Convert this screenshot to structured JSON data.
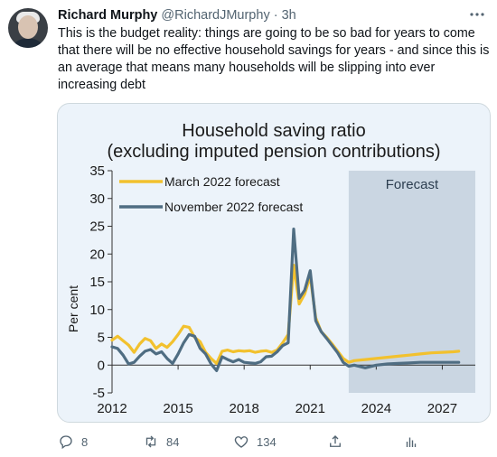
{
  "tweet": {
    "author_name": "Richard Murphy",
    "author_handle": "@RichardJMurphy",
    "separator": "·",
    "time": "3h",
    "text": "This is the budget reality: things are going to be so bad for years to come that there will be no effective household savings for years - and since this is an average that means many households will be slipping into ever increasing debt",
    "more_icon": "more-horizontal-icon"
  },
  "actions": {
    "reply_count": "8",
    "retweet_count": "84",
    "like_count": "134",
    "icons": [
      "reply-icon",
      "retweet-icon",
      "like-icon",
      "share-icon",
      "analytics-icon"
    ]
  },
  "chart_data": {
    "type": "line",
    "title_line1": "Household saving ratio",
    "title_line2": "(excluding imputed pension contributions)",
    "ylabel": "Per cent",
    "ylim": [
      -5,
      35
    ],
    "yticks": [
      "35",
      "30",
      "25",
      "20",
      "15",
      "10",
      "5",
      "0",
      "-5"
    ],
    "xlim": [
      2012,
      2028.5
    ],
    "xticks": [
      "2012",
      "2015",
      "2018",
      "2021",
      "2024",
      "2027"
    ],
    "forecast_label": "Forecast",
    "forecast_start": 2022.75,
    "series": [
      {
        "name": "March 2022 forecast",
        "color": "#f2c12e",
        "x": [
          2012,
          2012.25,
          2012.5,
          2012.75,
          2013,
          2013.25,
          2013.5,
          2013.75,
          2014,
          2014.25,
          2014.5,
          2014.75,
          2015,
          2015.25,
          2015.5,
          2015.75,
          2016,
          2016.25,
          2016.5,
          2016.75,
          2017,
          2017.25,
          2017.5,
          2017.75,
          2018,
          2018.25,
          2018.5,
          2018.75,
          2019,
          2019.25,
          2019.5,
          2019.75,
          2020,
          2020.25,
          2020.5,
          2020.75,
          2021,
          2021.25,
          2021.5,
          2021.75,
          2022,
          2022.25,
          2022.5,
          2022.75,
          2023,
          2023.5,
          2024,
          2024.5,
          2025,
          2025.5,
          2026,
          2026.5,
          2027,
          2027.5,
          2027.75
        ],
        "y": [
          4.5,
          5.2,
          4.4,
          3.6,
          2.3,
          3.8,
          4.8,
          4.4,
          3.0,
          3.8,
          3.2,
          4.2,
          5.5,
          7.0,
          6.8,
          5.0,
          4.2,
          2.3,
          1.2,
          0.3,
          2.5,
          2.7,
          2.4,
          2.6,
          2.5,
          2.6,
          2.3,
          2.5,
          2.6,
          2.3,
          2.7,
          4.0,
          5.5,
          18.0,
          11.0,
          12.8,
          16.0,
          8.5,
          6.0,
          5.0,
          3.8,
          2.5,
          1.2,
          0.5,
          0.8,
          1.0,
          1.2,
          1.4,
          1.6,
          1.8,
          2.0,
          2.2,
          2.3,
          2.4,
          2.5
        ]
      },
      {
        "name": "November 2022 forecast",
        "color": "#4f6d82",
        "x": [
          2012,
          2012.25,
          2012.5,
          2012.75,
          2013,
          2013.25,
          2013.5,
          2013.75,
          2014,
          2014.25,
          2014.5,
          2014.75,
          2015,
          2015.25,
          2015.5,
          2015.75,
          2016,
          2016.25,
          2016.5,
          2016.75,
          2017,
          2017.25,
          2017.5,
          2017.75,
          2018,
          2018.25,
          2018.5,
          2018.75,
          2019,
          2019.25,
          2019.5,
          2019.75,
          2020,
          2020.25,
          2020.5,
          2020.75,
          2021,
          2021.25,
          2021.5,
          2021.75,
          2022,
          2022.25,
          2022.5,
          2022.75,
          2023,
          2023.5,
          2024,
          2024.5,
          2025,
          2025.5,
          2026,
          2026.5,
          2027,
          2027.5,
          2027.75
        ],
        "y": [
          3.3,
          3.0,
          1.8,
          0.2,
          0.5,
          1.6,
          2.5,
          2.8,
          2.0,
          2.4,
          1.2,
          0.3,
          2.0,
          4.0,
          5.5,
          5.2,
          3.0,
          2.0,
          0.2,
          -1.0,
          1.5,
          1.0,
          0.6,
          1.0,
          0.5,
          0.4,
          0.3,
          0.6,
          1.5,
          1.6,
          2.4,
          3.5,
          4.0,
          24.5,
          12.0,
          13.5,
          17.0,
          8.0,
          6.0,
          4.8,
          3.5,
          2.2,
          0.5,
          -0.2,
          0.0,
          -0.5,
          0.0,
          0.2,
          0.3,
          0.4,
          0.5,
          0.5,
          0.5,
          0.5,
          0.5
        ]
      }
    ]
  }
}
